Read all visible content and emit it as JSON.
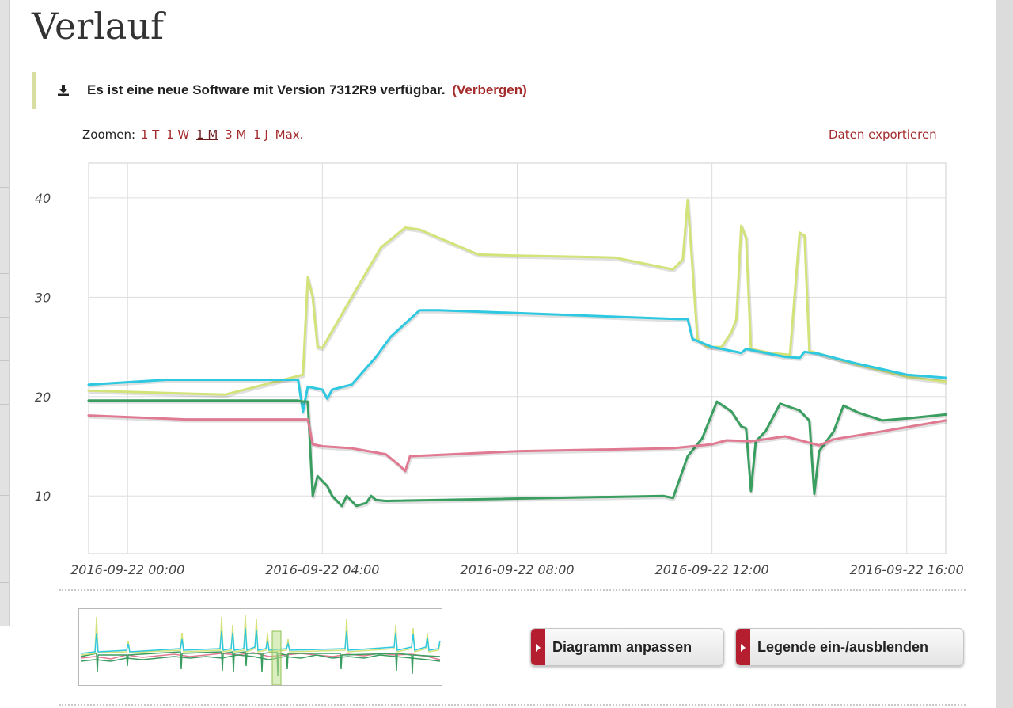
{
  "page": {
    "title": "Verlauf"
  },
  "notice": {
    "icon": "download-icon",
    "text": "Es ist eine neue Software mit Version 7312R9 verfügbar.",
    "hide_link": "(Verbergen)"
  },
  "zoom": {
    "label": "Zoomen:",
    "options": [
      "1 T",
      "1 W",
      "1 M",
      "3 M",
      "1 J",
      "Max."
    ],
    "selected": "1 M"
  },
  "export_link": "Daten exportieren",
  "buttons": {
    "adjust_chart": "Diagramm anpassen",
    "toggle_legend": "Legende ein-/ausblenden"
  },
  "colors": {
    "accent": "#a42b2b",
    "button_tab": "#b51e2e",
    "series_yellow": "#d4e27a",
    "series_cyan": "#2ec8e0",
    "series_green": "#3a9e60",
    "series_pink": "#e07a92"
  },
  "chart_data": {
    "type": "line",
    "title": "",
    "xlabel": "",
    "ylabel": "",
    "ylim": [
      4.2,
      43.5
    ],
    "xlim": [
      "2016-09-21 23:12",
      "2016-09-22 16:48"
    ],
    "yticks": [
      10,
      20,
      30,
      40
    ],
    "xticks": [
      "2016-09-22 00:00",
      "2016-09-22 04:00",
      "2016-09-22 08:00",
      "2016-09-22 12:00",
      "2016-09-22 16:00"
    ],
    "grid": true,
    "series": [
      {
        "color": "#d4e27a",
        "points": [
          [
            "2016-09-21 23:12",
            20.6
          ],
          [
            "2016-09-22 02:00",
            20.2
          ],
          [
            "2016-09-22 03:36",
            22.2
          ],
          [
            "2016-09-22 03:42",
            32.0
          ],
          [
            "2016-09-22 03:48",
            30.0
          ],
          [
            "2016-09-22 03:54",
            25.0
          ],
          [
            "2016-09-22 04:00",
            24.9
          ],
          [
            "2016-09-22 04:36",
            30.0
          ],
          [
            "2016-09-22 05:12",
            35.0
          ],
          [
            "2016-09-22 05:42",
            37.0
          ],
          [
            "2016-09-22 06:00",
            36.8
          ],
          [
            "2016-09-22 07:12",
            34.3
          ],
          [
            "2016-09-22 08:00",
            34.2
          ],
          [
            "2016-09-22 10:00",
            34.0
          ],
          [
            "2016-09-22 11:12",
            32.8
          ],
          [
            "2016-09-22 11:24",
            33.8
          ],
          [
            "2016-09-22 11:30",
            39.8
          ],
          [
            "2016-09-22 11:36",
            33.0
          ],
          [
            "2016-09-22 11:42",
            25.8
          ],
          [
            "2016-09-22 11:54",
            25.0
          ],
          [
            "2016-09-22 12:12",
            25.0
          ],
          [
            "2016-09-22 12:24",
            26.5
          ],
          [
            "2016-09-22 12:30",
            27.8
          ],
          [
            "2016-09-22 12:36",
            37.2
          ],
          [
            "2016-09-22 12:42",
            36.0
          ],
          [
            "2016-09-22 12:48",
            24.8
          ],
          [
            "2016-09-22 13:12",
            24.4
          ],
          [
            "2016-09-22 13:36",
            24.2
          ],
          [
            "2016-09-22 13:48",
            36.5
          ],
          [
            "2016-09-22 13:54",
            36.2
          ],
          [
            "2016-09-22 14:00",
            24.6
          ],
          [
            "2016-09-22 15:00",
            23.2
          ],
          [
            "2016-09-22 16:00",
            22.0
          ],
          [
            "2016-09-22 16:48",
            21.5
          ]
        ]
      },
      {
        "color": "#2ec8e0",
        "points": [
          [
            "2016-09-21 23:12",
            21.2
          ],
          [
            "2016-09-22 00:48",
            21.7
          ],
          [
            "2016-09-22 03:30",
            21.7
          ],
          [
            "2016-09-22 03:36",
            18.5
          ],
          [
            "2016-09-22 03:42",
            21.0
          ],
          [
            "2016-09-22 04:00",
            20.7
          ],
          [
            "2016-09-22 04:06",
            19.8
          ],
          [
            "2016-09-22 04:12",
            20.7
          ],
          [
            "2016-09-22 04:36",
            21.2
          ],
          [
            "2016-09-22 05:06",
            24.0
          ],
          [
            "2016-09-22 05:24",
            26.0
          ],
          [
            "2016-09-22 06:00",
            28.7
          ],
          [
            "2016-09-22 06:24",
            28.7
          ],
          [
            "2016-09-22 11:18",
            27.8
          ],
          [
            "2016-09-22 11:30",
            27.8
          ],
          [
            "2016-09-22 11:36",
            25.8
          ],
          [
            "2016-09-22 12:00",
            25.0
          ],
          [
            "2016-09-22 12:36",
            24.4
          ],
          [
            "2016-09-22 12:42",
            24.8
          ],
          [
            "2016-09-22 12:54",
            24.6
          ],
          [
            "2016-09-22 13:30",
            24.0
          ],
          [
            "2016-09-22 13:48",
            23.9
          ],
          [
            "2016-09-22 13:54",
            24.5
          ],
          [
            "2016-09-22 14:12",
            24.3
          ],
          [
            "2016-09-22 15:00",
            23.3
          ],
          [
            "2016-09-22 16:00",
            22.2
          ],
          [
            "2016-09-22 16:48",
            21.9
          ]
        ]
      },
      {
        "color": "#3a9e60",
        "points": [
          [
            "2016-09-21 23:12",
            19.6
          ],
          [
            "2016-09-22 03:30",
            19.6
          ],
          [
            "2016-09-22 03:36",
            19.5
          ],
          [
            "2016-09-22 03:42",
            19.5
          ],
          [
            "2016-09-22 03:48",
            10.0
          ],
          [
            "2016-09-22 03:54",
            12.0
          ],
          [
            "2016-09-22 04:06",
            11.0
          ],
          [
            "2016-09-22 04:12",
            10.0
          ],
          [
            "2016-09-22 04:24",
            9.0
          ],
          [
            "2016-09-22 04:30",
            10.0
          ],
          [
            "2016-09-22 04:42",
            9.0
          ],
          [
            "2016-09-22 04:54",
            9.3
          ],
          [
            "2016-09-22 05:00",
            10.0
          ],
          [
            "2016-09-22 05:06",
            9.6
          ],
          [
            "2016-09-22 05:18",
            9.5
          ],
          [
            "2016-09-22 11:00",
            10.0
          ],
          [
            "2016-09-22 11:12",
            9.8
          ],
          [
            "2016-09-22 11:30",
            14.0
          ],
          [
            "2016-09-22 11:48",
            15.8
          ],
          [
            "2016-09-22 12:06",
            19.5
          ],
          [
            "2016-09-22 12:24",
            18.5
          ],
          [
            "2016-09-22 12:36",
            17.0
          ],
          [
            "2016-09-22 12:42",
            16.8
          ],
          [
            "2016-09-22 12:48",
            10.5
          ],
          [
            "2016-09-22 12:54",
            15.5
          ],
          [
            "2016-09-22 13:06",
            16.5
          ],
          [
            "2016-09-22 13:24",
            19.3
          ],
          [
            "2016-09-22 13:48",
            18.6
          ],
          [
            "2016-09-22 14:00",
            17.6
          ],
          [
            "2016-09-22 14:06",
            10.2
          ],
          [
            "2016-09-22 14:12",
            14.5
          ],
          [
            "2016-09-22 14:30",
            16.5
          ],
          [
            "2016-09-22 14:42",
            19.1
          ],
          [
            "2016-09-22 15:00",
            18.4
          ],
          [
            "2016-09-22 15:30",
            17.6
          ],
          [
            "2016-09-22 16:00",
            17.8
          ],
          [
            "2016-09-22 16:48",
            18.2
          ]
        ]
      },
      {
        "color": "#e07a92",
        "points": [
          [
            "2016-09-21 23:12",
            18.1
          ],
          [
            "2016-09-22 01:12",
            17.7
          ],
          [
            "2016-09-22 03:30",
            17.7
          ],
          [
            "2016-09-22 03:42",
            17.7
          ],
          [
            "2016-09-22 03:48",
            15.2
          ],
          [
            "2016-09-22 04:00",
            15.0
          ],
          [
            "2016-09-22 04:36",
            14.8
          ],
          [
            "2016-09-22 05:18",
            14.2
          ],
          [
            "2016-09-22 05:36",
            13.0
          ],
          [
            "2016-09-22 05:42",
            12.5
          ],
          [
            "2016-09-22 05:48",
            14.0
          ],
          [
            "2016-09-22 08:00",
            14.5
          ],
          [
            "2016-09-22 11:12",
            14.8
          ],
          [
            "2016-09-22 12:00",
            15.2
          ],
          [
            "2016-09-22 12:18",
            15.6
          ],
          [
            "2016-09-22 12:48",
            15.5
          ],
          [
            "2016-09-22 13:30",
            16.0
          ],
          [
            "2016-09-22 14:12",
            15.1
          ],
          [
            "2016-09-22 14:30",
            15.7
          ],
          [
            "2016-09-22 15:30",
            16.5
          ],
          [
            "2016-09-22 16:48",
            17.6
          ]
        ]
      }
    ]
  }
}
